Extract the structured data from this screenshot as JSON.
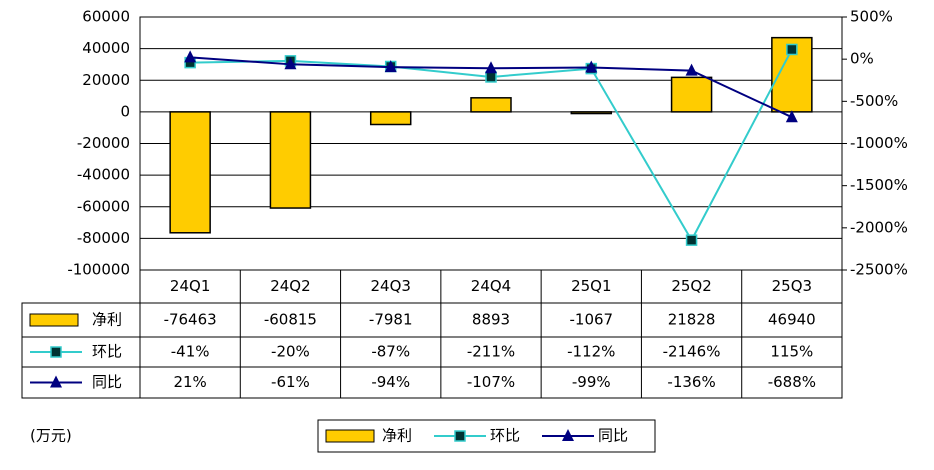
{
  "chart_data": {
    "type": "bar",
    "unit_label": "(万元)",
    "categories": [
      "24Q1",
      "24Q2",
      "24Q3",
      "24Q4",
      "25Q1",
      "25Q2",
      "25Q3"
    ],
    "series": [
      {
        "name": "净利",
        "type": "bar",
        "color": "#FFCC00",
        "values": [
          -76463,
          -60815,
          -7981,
          8893,
          -1067,
          21828,
          46940
        ]
      },
      {
        "name": "环比",
        "type": "line",
        "axis": "y2",
        "color": "#33CCCC",
        "marker": "square",
        "marker_color": "#003333",
        "values": [
          -41,
          -20,
          -87,
          -211,
          -112,
          -2146,
          115
        ],
        "value_labels": [
          "-41%",
          "-20%",
          "-87%",
          "-211%",
          "-112%",
          "-2146%",
          "115%"
        ]
      },
      {
        "name": "同比",
        "type": "line",
        "axis": "y2",
        "color": "#000080",
        "marker": "triangle",
        "marker_color": "#000080",
        "values": [
          21,
          -61,
          -94,
          -107,
          -99,
          -136,
          -688
        ],
        "value_labels": [
          "21%",
          "-61%",
          "-94%",
          "-107%",
          "-99%",
          "-136%",
          "-688%"
        ]
      }
    ],
    "ylim": [
      -100000,
      60000
    ],
    "yticks": [
      -100000,
      -80000,
      -60000,
      -40000,
      -20000,
      0,
      20000,
      40000,
      60000
    ],
    "y2lim": [
      -2500,
      500
    ],
    "y2ticks": [
      {
        "value": -2500,
        "label": "-2500%"
      },
      {
        "value": -2000,
        "label": "-2000%"
      },
      {
        "value": -1500,
        "label": "-1500%"
      },
      {
        "value": -1000,
        "label": "-1000%"
      },
      {
        "value": -500,
        "label": "-500%"
      },
      {
        "value": 0,
        "label": "0%"
      },
      {
        "value": 500,
        "label": "500%"
      }
    ],
    "grid": true
  }
}
